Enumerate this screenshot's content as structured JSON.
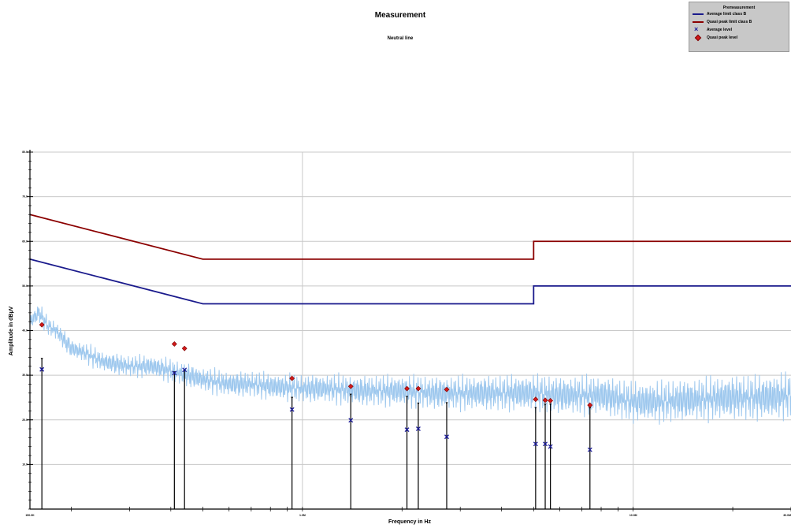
{
  "chart_data": {
    "type": "line",
    "title": "Measurement",
    "subtitle": "Neutral line",
    "xlabel": "Frequency in Hz",
    "ylabel": "Amplitude in dBµV",
    "x_scale": "log",
    "xlim": [
      150000,
      30000000
    ],
    "ylim": [
      0,
      80
    ],
    "x_tick_labels": [
      {
        "value": 150000,
        "label": "150.0K"
      },
      {
        "value": 1000000,
        "label": "1.0M"
      },
      {
        "value": 10000000,
        "label": "10.0M"
      },
      {
        "value": 30000000,
        "label": "30.0M"
      }
    ],
    "y_tick_labels": [
      {
        "value": 10,
        "label": "10.0"
      },
      {
        "value": 20,
        "label": "20.0"
      },
      {
        "value": 30,
        "label": "30.0"
      },
      {
        "value": 40,
        "label": "40.0"
      },
      {
        "value": 50,
        "label": "50.0"
      },
      {
        "value": 60,
        "label": "60.0"
      },
      {
        "value": 70,
        "label": "70.0"
      },
      {
        "value": 80,
        "label": "80.0"
      }
    ],
    "grid": true,
    "legend": {
      "position": "top-right",
      "title": "Premeasurement",
      "entries": [
        {
          "label": "Average limit class B",
          "marker": "line",
          "color": "#1a1a8c"
        },
        {
          "label": "Quasi peak limit class B",
          "marker": "line",
          "color": "#8b0000"
        },
        {
          "label": "Average level",
          "marker": "x",
          "color": "#1a1a9a"
        },
        {
          "label": "Quasi peak level",
          "marker": "diamond",
          "color": "#d21a1a"
        }
      ]
    },
    "series": [
      {
        "name": "Quasi peak limit class B",
        "color": "#8b0000",
        "x": [
          150000,
          500000,
          500000,
          5000000,
          5000000,
          30000000
        ],
        "y": [
          66,
          56,
          56,
          56,
          60,
          60
        ]
      },
      {
        "name": "Average limit class B",
        "color": "#1a1a8c",
        "x": [
          150000,
          500000,
          500000,
          5000000,
          5000000,
          30000000
        ],
        "y": [
          56,
          46,
          46,
          46,
          50,
          50
        ]
      },
      {
        "name": "Premeasurement",
        "color": "#9ec8ee",
        "x": [
          150000,
          160000,
          170000,
          180000,
          200000,
          220000,
          250000,
          300000,
          350000,
          400000,
          450000,
          500000,
          600000,
          700000,
          800000,
          1000000,
          1200000,
          1500000,
          2000000,
          2500000,
          3000000,
          4000000,
          5000000,
          6000000,
          7000000,
          8000000,
          10000000,
          12000000,
          15000000,
          20000000,
          25000000,
          30000000
        ],
        "y": [
          42,
          44,
          41,
          40,
          36,
          35,
          33,
          32,
          32,
          31,
          30,
          29,
          28,
          28,
          27.5,
          27,
          27,
          26.5,
          26.5,
          26,
          26,
          26,
          26,
          25.5,
          25.5,
          25.5,
          24,
          24,
          24.5,
          25,
          25,
          25.5
        ]
      },
      {
        "name": "Quasi peak level",
        "type": "scatter",
        "marker": "diamond",
        "color": "#d21a1a",
        "x": [
          163000,
          410000,
          440000,
          930000,
          1400000,
          2070000,
          2240000,
          2730000,
          5070000,
          5420000,
          5620000,
          7400000
        ],
        "y": [
          41.3,
          37.0,
          36.0,
          29.3,
          27.5,
          27.0,
          27.0,
          26.8,
          24.6,
          24.4,
          24.3,
          23.3
        ]
      },
      {
        "name": "Average level",
        "type": "scatter",
        "marker": "x",
        "color": "#1a1a9a",
        "x": [
          163000,
          410000,
          440000,
          930000,
          1400000,
          2070000,
          2240000,
          2730000,
          5070000,
          5420000,
          5620000,
          7400000
        ],
        "y": [
          31.3,
          30.5,
          31.2,
          22.3,
          19.9,
          17.8,
          18.0,
          16.2,
          14.6,
          14.6,
          14.0,
          13.3
        ]
      }
    ],
    "stems": {
      "color": "#000000",
      "x": [
        163000,
        410000,
        440000,
        930000,
        1400000,
        2070000,
        2240000,
        2730000,
        5070000,
        5420000,
        5620000,
        7400000
      ],
      "y": [
        33.5,
        30.5,
        31.0,
        24.8,
        25.5,
        25.0,
        23.5,
        23.6,
        22.5,
        23.3,
        23.3,
        22.5
      ]
    }
  }
}
